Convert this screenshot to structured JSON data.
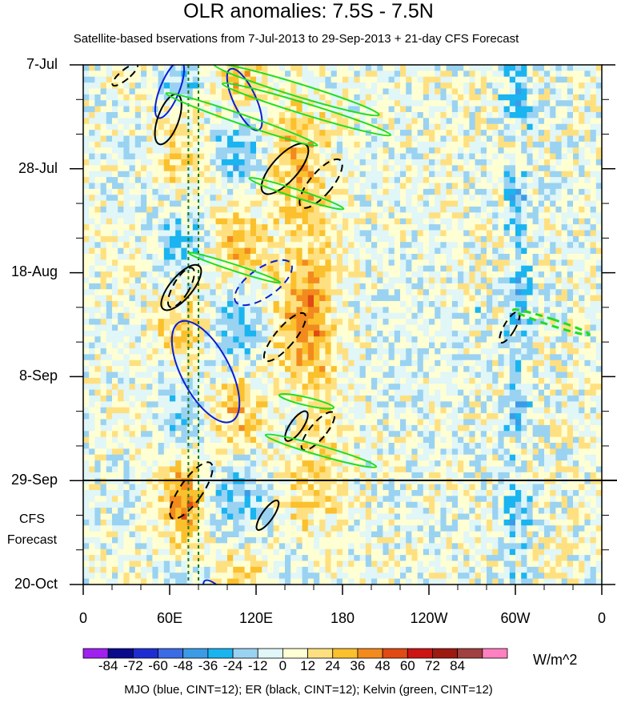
{
  "chart_data": {
    "type": "heatmap",
    "title": "OLR anomalies: 7.5S - 7.5N",
    "subtitle": "Satellite-based bservations from 7-Jul-2013 to 29-Sep-2013 + 21-day CFS Forecast",
    "x_ticks": [
      "0",
      "60E",
      "120E",
      "180",
      "120W",
      "60W",
      "0"
    ],
    "x_range_deg_east": [
      0,
      360
    ],
    "y_ticks": [
      "7-Jul",
      "28-Jul",
      "18-Aug",
      "8-Sep",
      "29-Sep",
      "20-Oct"
    ],
    "y_range_days_since_start": [
      0,
      105
    ],
    "forecast_label": [
      "CFS",
      "Forecast"
    ],
    "forecast_start": "29-Sep",
    "colorbar": {
      "levels": [
        "-84",
        "-72",
        "-60",
        "-48",
        "-36",
        "-24",
        "-12",
        "0",
        "12",
        "24",
        "36",
        "48",
        "60",
        "72",
        "84"
      ],
      "colors": [
        "#a020f0",
        "#0a0a8c",
        "#1e2dd2",
        "#3c6be6",
        "#3c9be6",
        "#1ab4f0",
        "#9ad2f2",
        "#e0f6f7",
        "#ffffd4",
        "#ffe080",
        "#fbc02d",
        "#f28a1e",
        "#e04a14",
        "#cc1414",
        "#9c1a10",
        "#a04040",
        "#ff80c0"
      ],
      "units": "W/m^2"
    },
    "footer": "MJO (blue, CINT=12); ER (black, CINT=12); Kelvin (green, CINT=12)",
    "grid": false
  },
  "overlay_colors": {
    "mjo": "#0a1ed6",
    "er": "#000000",
    "kelvin": "#22dd22",
    "reference_lines": "#1a7a1a"
  }
}
